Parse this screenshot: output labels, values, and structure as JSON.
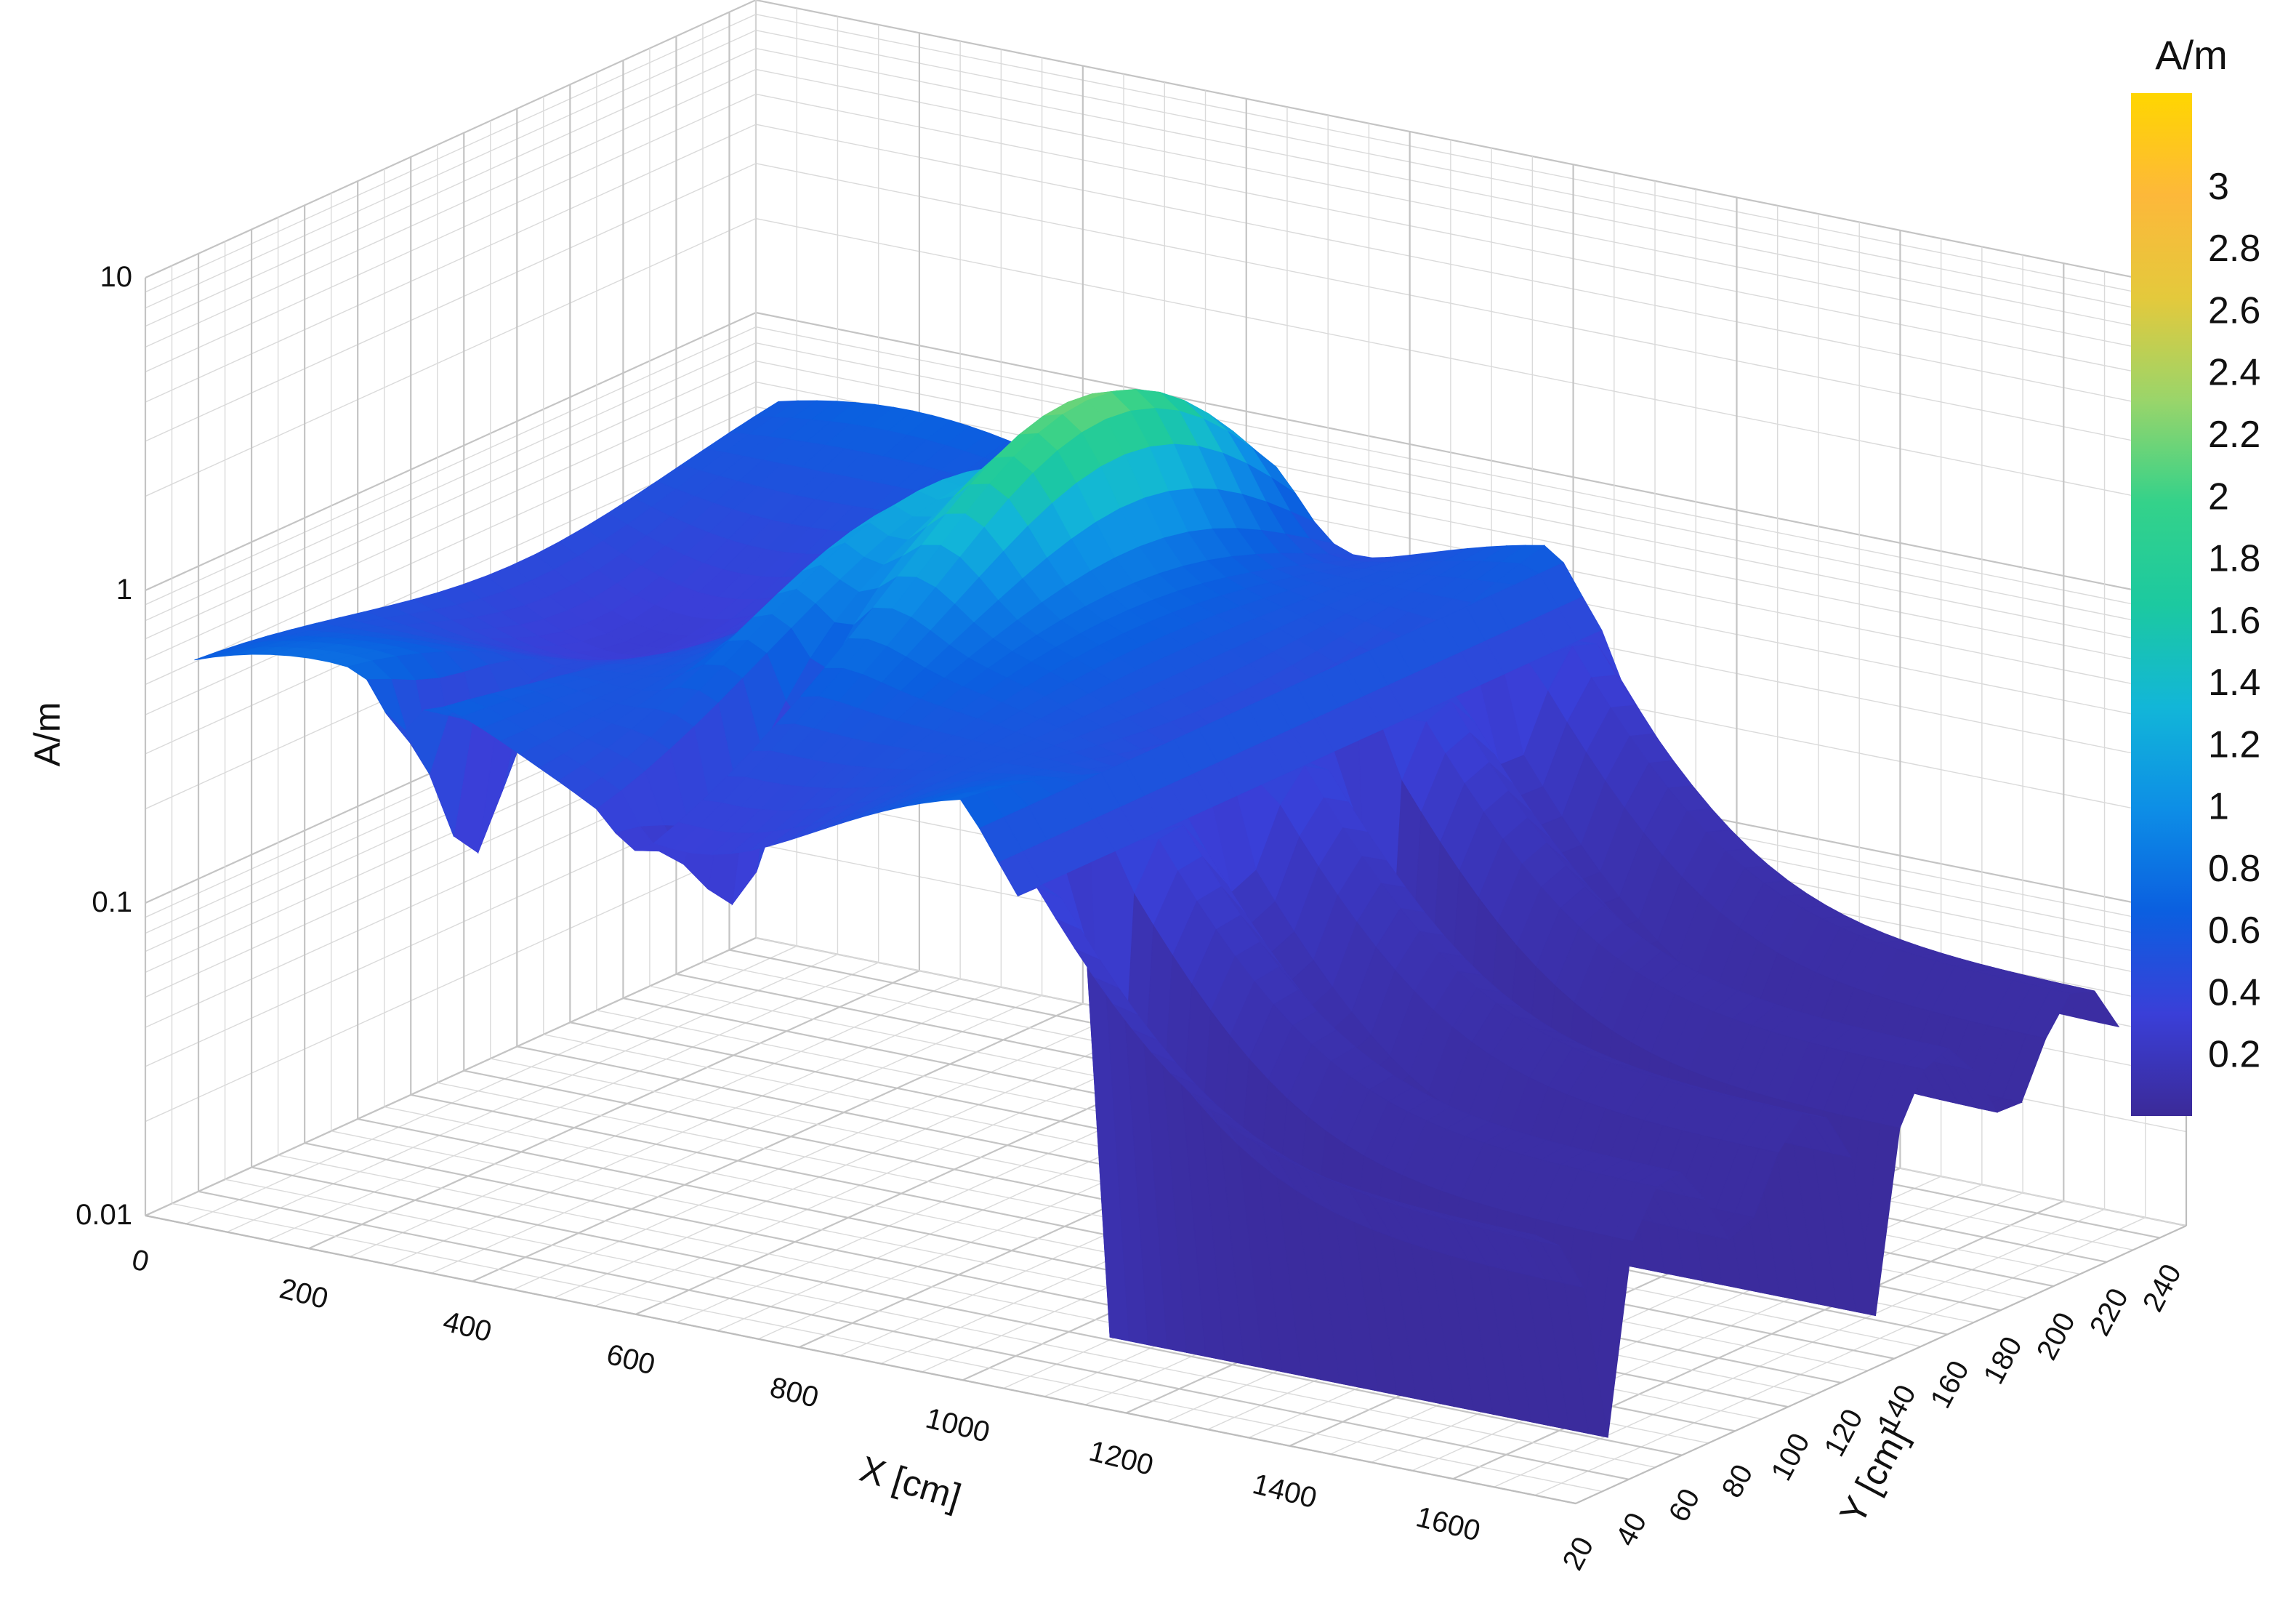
{
  "chart_data": {
    "type": "surface3d",
    "z_scale": "log",
    "grid": true,
    "x_label": "X [cm]",
    "y_label": "Y [cm]",
    "z_label": "A/m",
    "x_range": [
      0,
      1750
    ],
    "y_range": [
      20,
      250
    ],
    "z_range": [
      0.01,
      10
    ],
    "x_ticks": [
      "0",
      "200",
      "400",
      "600",
      "800",
      "1000",
      "1200",
      "1400",
      "1600"
    ],
    "y_ticks": [
      "20",
      "40",
      "60",
      "80",
      "100",
      "120",
      "140",
      "160",
      "180",
      "200",
      "220",
      "240"
    ],
    "z_ticks": [
      "0.01",
      "0.1",
      "1",
      "10"
    ],
    "colorbar": {
      "title": "A/m",
      "range": [
        0,
        3.3
      ],
      "ticks": [
        "0.2",
        "0.4",
        "0.6",
        "0.8",
        "1",
        "1.2",
        "1.4",
        "1.6",
        "1.8",
        "2",
        "2.2",
        "2.4",
        "2.6",
        "2.8",
        "3"
      ],
      "colors": [
        "#3b2a98",
        "#3a3fd8",
        "#0b5fe0",
        "#0d8ee6",
        "#12b6d8",
        "#1cc9a0",
        "#34d28a",
        "#9ad56a",
        "#e4c93c",
        "#fdb83a",
        "#ffd600"
      ]
    }
  }
}
